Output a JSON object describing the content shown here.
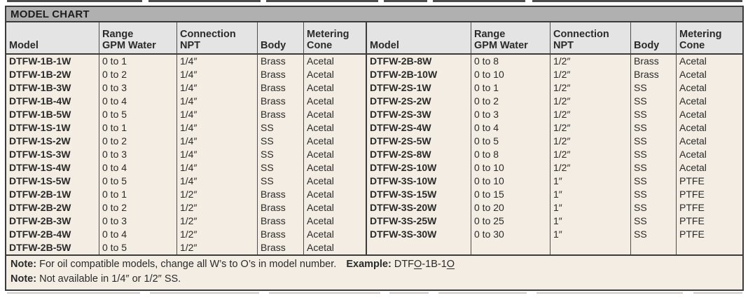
{
  "title": "MODEL CHART",
  "table": {
    "column_headers": [
      {
        "line1": "",
        "line2": "Model"
      },
      {
        "line1": "Range",
        "line2": "GPM Water"
      },
      {
        "line1": "Connection",
        "line2": "NPT"
      },
      {
        "line1": "",
        "line2": "Body"
      },
      {
        "line1": "Metering",
        "line2": "Cone"
      }
    ],
    "left_rows": [
      [
        "DTFW-1B-1W",
        "0 to 1",
        "1/4″",
        "Brass",
        "Acetal"
      ],
      [
        "DTFW-1B-2W",
        "0 to 2",
        "1/4″",
        "Brass",
        "Acetal"
      ],
      [
        "DTFW-1B-3W",
        "0 to 3",
        "1/4″",
        "Brass",
        "Acetal"
      ],
      [
        "DTFW-1B-4W",
        "0 to 4",
        "1/4″",
        "Brass",
        "Acetal"
      ],
      [
        "DTFW-1B-5W",
        "0 to 5",
        "1/4″",
        "Brass",
        "Acetal"
      ],
      [
        "DTFW-1S-1W",
        "0 to 1",
        "1/4″",
        "SS",
        "Acetal"
      ],
      [
        "DTFW-1S-2W",
        "0 to 2",
        "1/4″",
        "SS",
        "Acetal"
      ],
      [
        "DTFW-1S-3W",
        "0 to 3",
        "1/4″",
        "SS",
        "Acetal"
      ],
      [
        "DTFW-1S-4W",
        "0 to 4",
        "1/4″",
        "SS",
        "Acetal"
      ],
      [
        "DTFW-1S-5W",
        "0 to 5",
        "1/4″",
        "SS",
        "Acetal"
      ],
      [
        "DTFW-2B-1W",
        "0 to 1",
        "1/2″",
        "Brass",
        "Acetal"
      ],
      [
        "DTFW-2B-2W",
        "0 to 2",
        "1/2″",
        "Brass",
        "Acetal"
      ],
      [
        "DTFW-2B-3W",
        "0 to 3",
        "1/2″",
        "Brass",
        "Acetal"
      ],
      [
        "DTFW-2B-4W",
        "0 to 4",
        "1/2″",
        "Brass",
        "Acetal"
      ],
      [
        "DTFW-2B-5W",
        "0 to 5",
        "1/2″",
        "Brass",
        "Acetal"
      ]
    ],
    "right_rows": [
      [
        "DTFW-2B-8W",
        "0 to 8",
        "1/2″",
        "Brass",
        "Acetal"
      ],
      [
        "DTFW-2B-10W",
        "0 to 10",
        "1/2″",
        "Brass",
        "Acetal"
      ],
      [
        "DTFW-2S-1W",
        "0 to 1",
        "1/2″",
        "SS",
        "Acetal"
      ],
      [
        "DTFW-2S-2W",
        "0 to 2",
        "1/2″",
        "SS",
        "Acetal"
      ],
      [
        "DTFW-2S-3W",
        "0 to 3",
        "1/2″",
        "SS",
        "Acetal"
      ],
      [
        "DTFW-2S-4W",
        "0 to 4",
        "1/2″",
        "SS",
        "Acetal"
      ],
      [
        "DTFW-2S-5W",
        "0 to 5",
        "1/2″",
        "SS",
        "Acetal"
      ],
      [
        "DTFW-2S-8W",
        "0 to 8",
        "1/2″",
        "SS",
        "Acetal"
      ],
      [
        "DTFW-2S-10W",
        "0 to 10",
        "1/2″",
        "SS",
        "Acetal"
      ],
      [
        "DTFW-3S-10W",
        "0 to 10",
        "1″",
        "SS",
        "PTFE"
      ],
      [
        "DTFW-3S-15W",
        "0 to 15",
        "1″",
        "SS",
        "PTFE"
      ],
      [
        "DTFW-3S-20W",
        "0 to 20",
        "1″",
        "SS",
        "PTFE"
      ],
      [
        "DTFW-3S-25W",
        "0 to 25",
        "1″",
        "SS",
        "PTFE"
      ],
      [
        "DTFW-3S-30W",
        "0 to 30",
        "1″",
        "SS",
        "PTFE"
      ],
      [
        "",
        "",
        "",
        "",
        ""
      ]
    ],
    "column_semantic_names": [
      "cell-model",
      "cell-range-gpm",
      "cell-connection-npt",
      "cell-body",
      "cell-metering-cone"
    ]
  },
  "notes": [
    {
      "label": "Note:",
      "text": "For oil compatible models, change all W’s to O’s in model number.",
      "example_label": "Example:",
      "example_parts": [
        {
          "t": "DTF"
        },
        {
          "t": "O",
          "u": true
        },
        {
          "t": "-1B-1"
        },
        {
          "t": "O",
          "u": true
        }
      ]
    },
    {
      "label": "Note:",
      "text": "Not available in 1/4″ or 1/2″ SS."
    }
  ],
  "colors": {
    "title_bar_bg": "#b0b0b0",
    "header_row_bg": "#e4e4e4",
    "data_bg": "#f3ede3",
    "border_dark": "#3b3b3b",
    "grid_line": "#4d4d4d"
  }
}
